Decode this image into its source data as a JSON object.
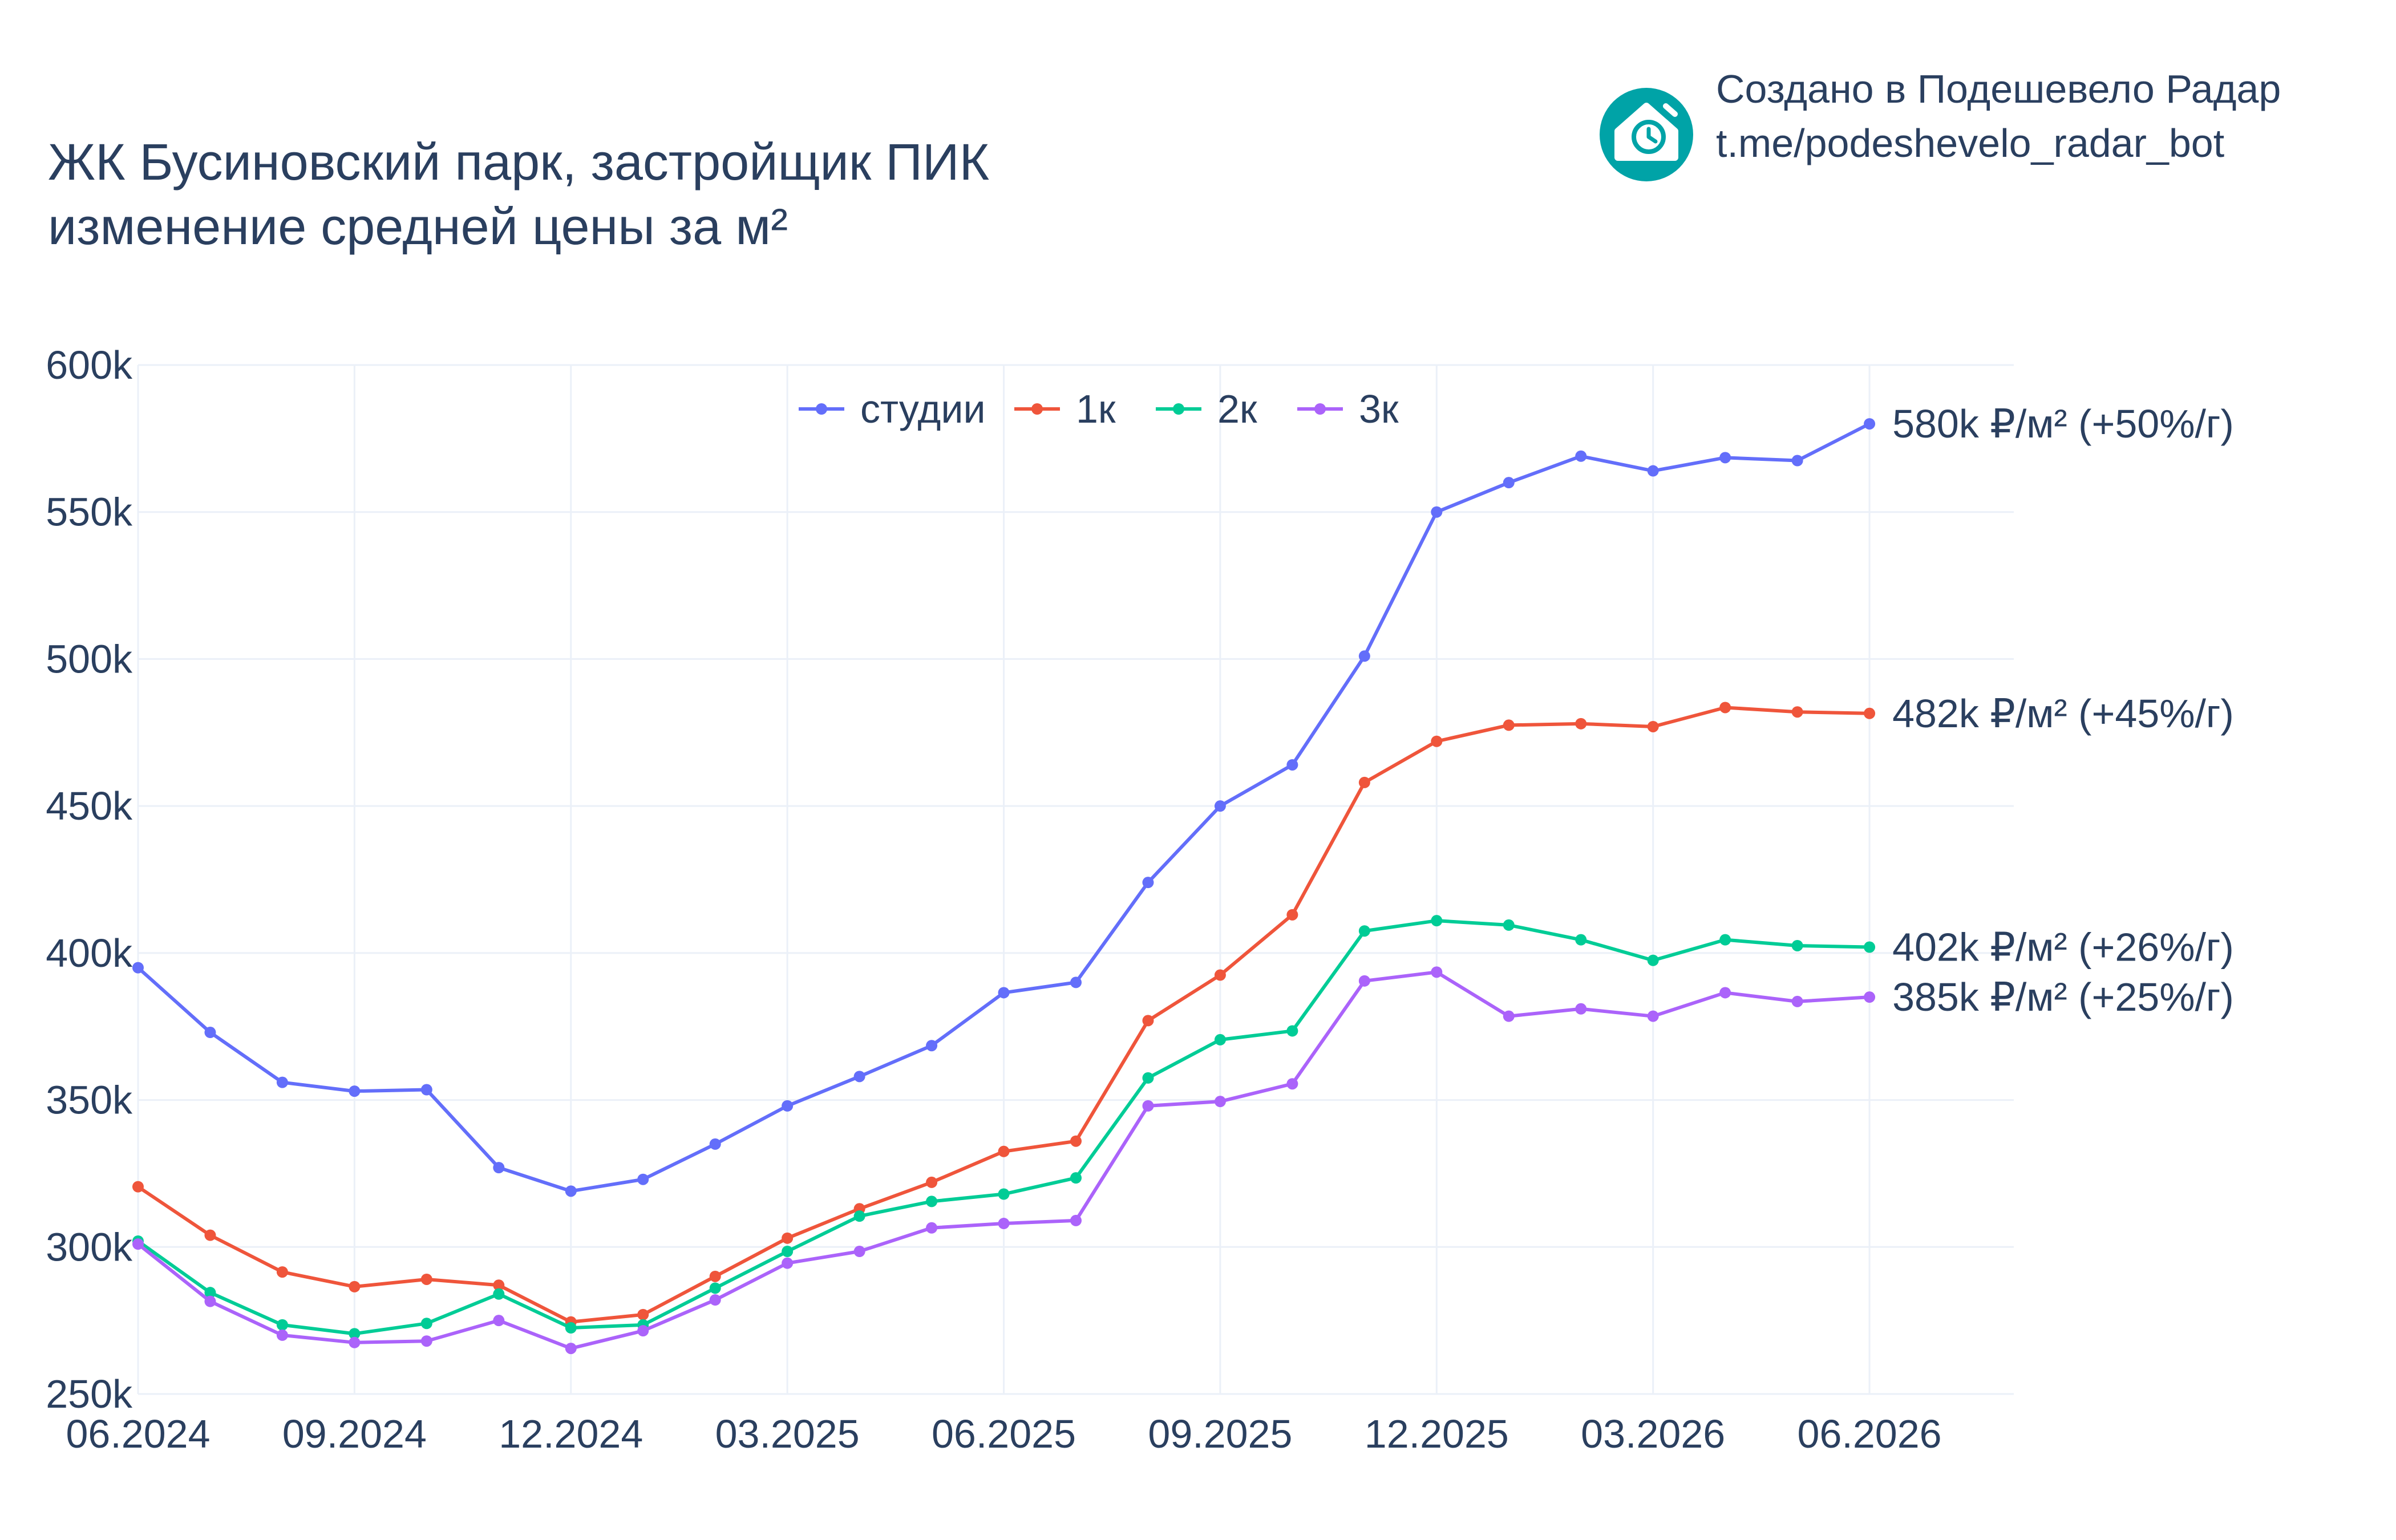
{
  "title_line1": "ЖК Бусиновский парк, застройщик ПИК",
  "title_line2": "изменение средней цены за м²",
  "brand": {
    "line1": "Создано в Подешевело Радар",
    "line2": "t.me/podeshevelo_radar_bot",
    "icon": "house-clock-icon",
    "color": "#00a3a7"
  },
  "chart_data": {
    "type": "line",
    "x": [
      "2024-06",
      "2024-07",
      "2024-08",
      "2024-09",
      "2024-10",
      "2024-11",
      "2024-12",
      "2025-01",
      "2025-02",
      "2025-03",
      "2025-04",
      "2025-05",
      "2025-06",
      "2025-07",
      "2025-08",
      "2025-09",
      "2025-10",
      "2025-11",
      "2025-12",
      "2026-01",
      "2026-02",
      "2026-03",
      "2026-04",
      "2026-05",
      "2026-06"
    ],
    "x_ticks": [
      {
        "x": "2024-06",
        "label": "06.2024"
      },
      {
        "x": "2024-09",
        "label": "09.2024"
      },
      {
        "x": "2024-12",
        "label": "12.2024"
      },
      {
        "x": "2025-03",
        "label": "03.2025"
      },
      {
        "x": "2025-06",
        "label": "06.2025"
      },
      {
        "x": "2025-09",
        "label": "09.2025"
      },
      {
        "x": "2025-12",
        "label": "12.2025"
      },
      {
        "x": "2026-03",
        "label": "03.2026"
      },
      {
        "x": "2026-06",
        "label": "06.2026"
      }
    ],
    "xlim": [
      "2024-06",
      "2026-08"
    ],
    "ylim": [
      250000,
      600000
    ],
    "y_ticks": [
      {
        "v": 250000,
        "label": "250k"
      },
      {
        "v": 300000,
        "label": "300k"
      },
      {
        "v": 350000,
        "label": "350k"
      },
      {
        "v": 400000,
        "label": "400k"
      },
      {
        "v": 450000,
        "label": "450k"
      },
      {
        "v": 500000,
        "label": "500k"
      },
      {
        "v": 550000,
        "label": "550k"
      },
      {
        "v": 600000,
        "label": "600k"
      }
    ],
    "grid": true,
    "legend_position": "top-center",
    "series": [
      {
        "name": "студии",
        "color": "#636efa",
        "values": [
          395000,
          373000,
          356000,
          353000,
          353500,
          327000,
          319000,
          323000,
          335000,
          348000,
          358000,
          368500,
          386500,
          390000,
          424000,
          450000,
          464000,
          501000,
          550000,
          560000,
          569000,
          564000,
          568500,
          567500,
          580000
        ],
        "end_label": "580k ₽/м² (+50%/г)"
      },
      {
        "name": "1к",
        "color": "#ef553b",
        "values": [
          320500,
          304000,
          291500,
          286500,
          289000,
          287000,
          274500,
          277000,
          290000,
          303000,
          313000,
          322000,
          332500,
          336000,
          377000,
          392500,
          413000,
          458000,
          472000,
          477500,
          478000,
          477000,
          483500,
          482000,
          481500
        ],
        "end_label": "482k ₽/м² (+45%/г)"
      },
      {
        "name": "2к",
        "color": "#00cc96",
        "values": [
          302000,
          284500,
          273500,
          270500,
          274000,
          284000,
          272500,
          273500,
          286000,
          298500,
          310500,
          315500,
          318000,
          323500,
          357500,
          370500,
          373500,
          407500,
          411000,
          409500,
          404500,
          397500,
          404500,
          402500,
          402000
        ],
        "end_label": "402k ₽/м² (+26%/г)"
      },
      {
        "name": "3к",
        "color": "#ab63fa",
        "values": [
          301000,
          281500,
          270000,
          267500,
          268000,
          275000,
          265500,
          271500,
          282000,
          294500,
          298500,
          306500,
          308000,
          309000,
          348000,
          349500,
          355500,
          390500,
          393500,
          378500,
          381000,
          378500,
          386500,
          383500,
          385000
        ],
        "end_label": "385k ₽/м² (+25%/г)"
      }
    ]
  }
}
